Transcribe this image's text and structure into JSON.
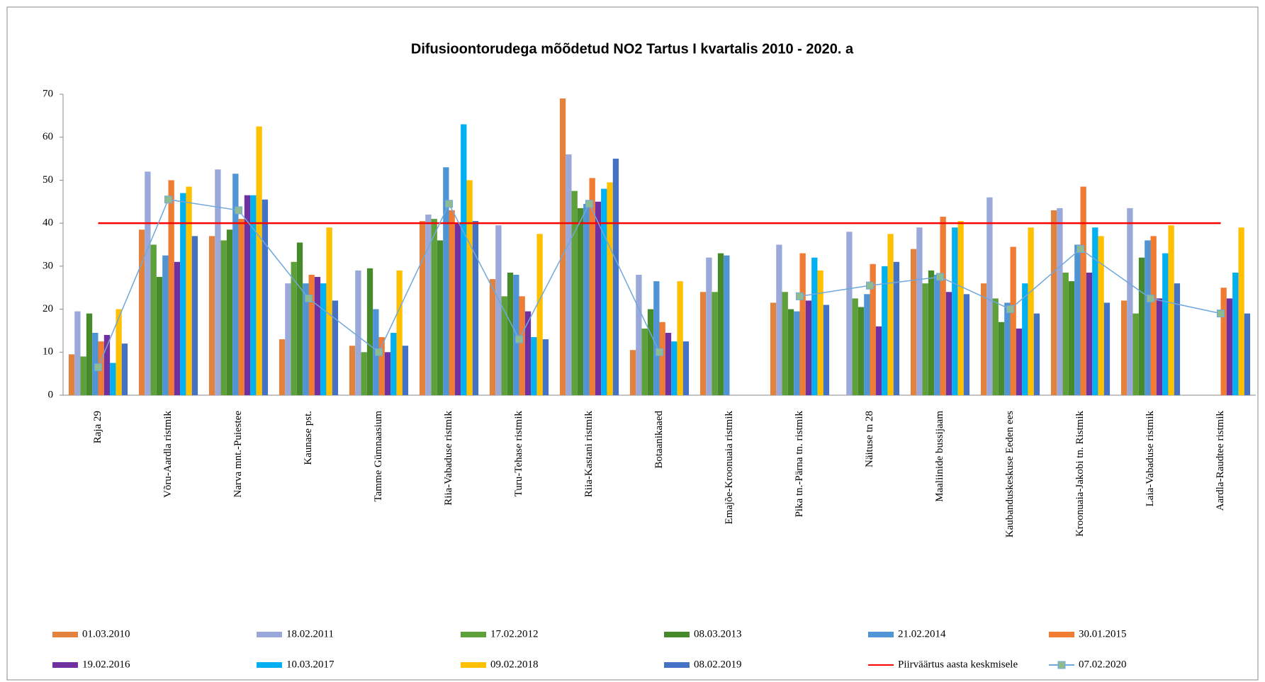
{
  "chart_data": {
    "type": "bar",
    "title": "Difusioontorudega mõõdetud NO2 Tartus I kvartalis 2010 - 2020. a",
    "categories": [
      "Raja 29",
      "Võru-Aardla ristmik",
      "Narva mnt.-Puiestee",
      "Kaunase pst.",
      "Tamme Gümnaasium",
      "Riia-Vabaduse ristmik",
      "Turu-Tehase ristmik",
      "Riia-Kastani ristmik",
      "Botaanikaaed",
      "Emajõe-Kroonuaia ristmik",
      "Pika tn.-Pärna tn. ristmik",
      "Näituse tn 28",
      "Maaliinide bussijaam",
      "Kaubanduskeskuse Eeden ees",
      "Kroonuaia-Jakobi tn. Ristmik",
      "Laia-Vabaduse ristmik",
      "Aardla-Raudtee ristmik"
    ],
    "series": [
      {
        "name": "01.03.2010",
        "color": "#e2823c",
        "values": [
          9.5,
          38.5,
          37,
          13,
          11.5,
          40.5,
          27,
          69,
          10.5,
          24,
          21.5,
          null,
          34,
          26,
          43,
          22,
          null
        ]
      },
      {
        "name": "18.02.2011",
        "color": "#9aa9d9",
        "values": [
          19.5,
          52,
          52.5,
          26,
          29,
          42,
          39.5,
          56,
          28,
          32,
          35,
          38,
          39,
          46,
          43.5,
          43.5,
          null
        ]
      },
      {
        "name": "17.02.2012",
        "color": "#5ea03a",
        "values": [
          9,
          35,
          36,
          31,
          10,
          41,
          23,
          47.5,
          15.5,
          24,
          24,
          22.5,
          26,
          22.5,
          28.5,
          19,
          null
        ]
      },
      {
        "name": "08.03.2013",
        "color": "#478a2c",
        "values": [
          19,
          27.5,
          38.5,
          35.5,
          29.5,
          36,
          28.5,
          43.5,
          20,
          33,
          20,
          20.5,
          29,
          17,
          26.5,
          32,
          null
        ]
      },
      {
        "name": "21.02.2014",
        "color": "#4f94d4",
        "values": [
          14.5,
          32.5,
          51.5,
          26,
          20,
          53,
          28,
          44.5,
          26.5,
          32.5,
          19.5,
          23.5,
          28,
          21.5,
          35,
          36,
          null
        ]
      },
      {
        "name": "30.01.2015",
        "color": "#f07b32",
        "values": [
          12.5,
          50,
          41,
          28,
          13.5,
          43,
          23,
          50.5,
          17,
          null,
          33,
          30.5,
          41.5,
          34.5,
          48.5,
          37,
          25
        ]
      },
      {
        "name": "19.02.2016",
        "color": "#7030a0",
        "values": [
          14,
          31,
          46.5,
          27.5,
          10,
          40,
          19.5,
          45,
          14.5,
          null,
          22,
          16,
          24,
          15.5,
          28.5,
          22.5,
          22.5
        ]
      },
      {
        "name": "10.03.2017",
        "color": "#00b0f0",
        "values": [
          7.5,
          47,
          46.5,
          26,
          14.5,
          63,
          13.5,
          48,
          12.5,
          null,
          32,
          30,
          39,
          26,
          39,
          33,
          28.5
        ]
      },
      {
        "name": "09.02.2018",
        "color": "#ffc000",
        "values": [
          20,
          48.5,
          62.5,
          39,
          29,
          50,
          37.5,
          49.5,
          26.5,
          null,
          29,
          37.5,
          40.5,
          39,
          37,
          39.5,
          39
        ]
      },
      {
        "name": "08.02.2019",
        "color": "#4472c4",
        "values": [
          12,
          37,
          45.5,
          22,
          11.5,
          40.5,
          13,
          55,
          12.5,
          null,
          21,
          31,
          23.5,
          19,
          21.5,
          26,
          19
        ]
      },
      {
        "name": "Piirväärtus aasta keskmisele",
        "color": "#ff0000",
        "type": "line",
        "values": [
          40,
          40,
          40,
          40,
          40,
          40,
          40,
          40,
          40,
          40,
          40,
          40,
          40,
          40,
          40,
          40,
          40
        ]
      },
      {
        "name": "07.02.2020",
        "color": "#6fa8dc",
        "type": "line",
        "marker": true,
        "values": [
          6.5,
          45.5,
          43,
          22.5,
          10,
          44.5,
          13,
          44.5,
          10,
          null,
          23,
          25.5,
          27.5,
          20,
          34,
          22.5,
          19
        ]
      }
    ],
    "ylim": [
      0,
      70
    ],
    "yticks": [
      0,
      10,
      20,
      30,
      40,
      50,
      60,
      70
    ],
    "grid": false
  }
}
